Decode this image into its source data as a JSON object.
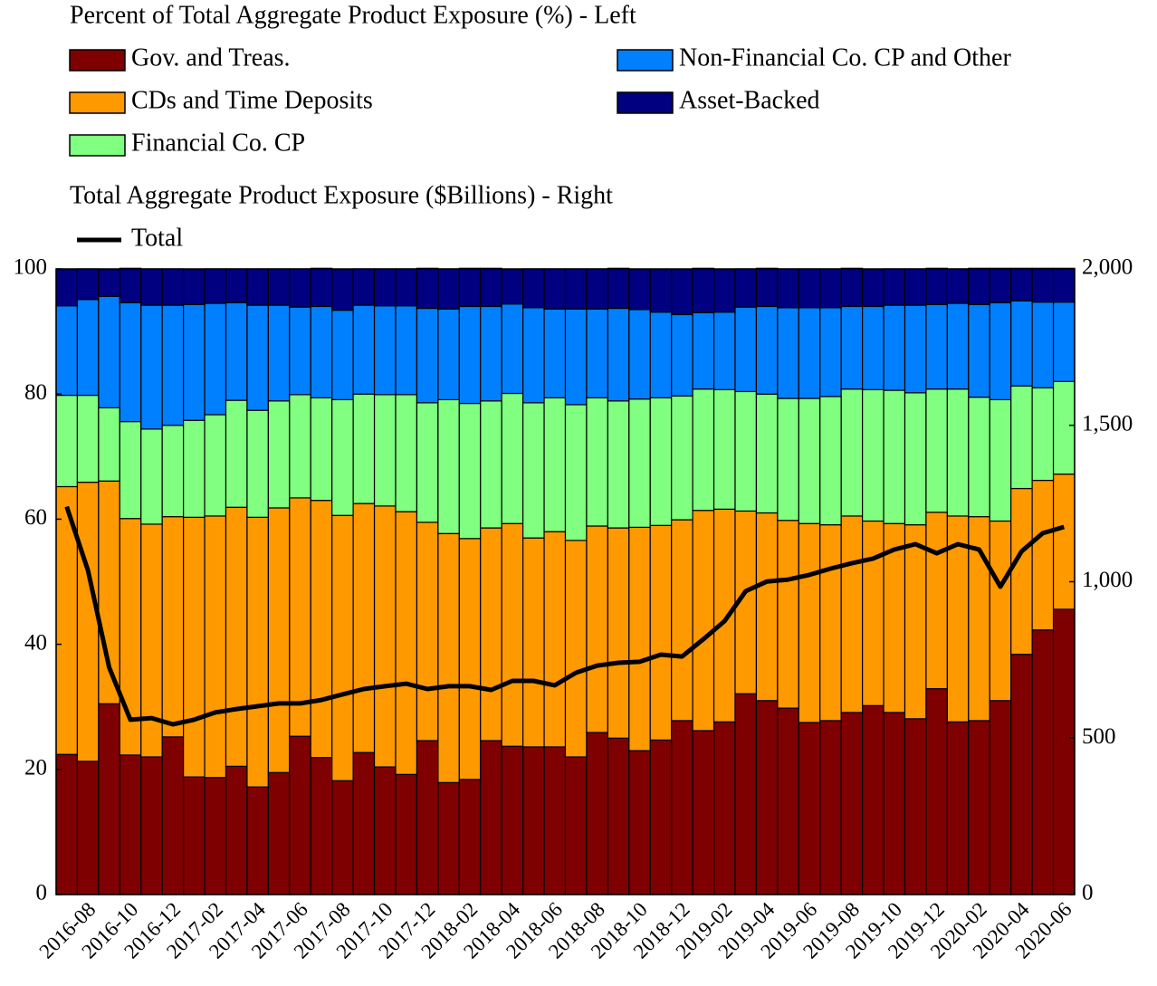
{
  "chart_data": {
    "type": "bar",
    "stacked": true,
    "left_legend_title": "Percent of Total Aggregate Product Exposure (%) - Left",
    "right_legend_title": "Total Aggregate Product Exposure ($Billions) - Right",
    "categories": [
      null,
      "2016-08",
      null,
      "2016-10",
      null,
      "2016-12",
      null,
      "2017-02",
      null,
      "2017-04",
      null,
      "2017-06",
      null,
      "2017-08",
      null,
      "2017-10",
      null,
      "2017-12",
      null,
      "2018-02",
      null,
      "2018-04",
      null,
      "2018-06",
      null,
      "2018-08",
      null,
      "2018-10",
      null,
      "2018-12",
      null,
      "2019-02",
      null,
      "2019-04",
      null,
      "2019-06",
      null,
      "2019-08",
      null,
      "2019-10",
      null,
      "2019-12",
      null,
      "2020-02",
      null,
      "2020-04",
      null,
      "2020-06"
    ],
    "series": [
      {
        "name": "Gov. and Treas.",
        "color": "#7f0000",
        "values": [
          22.4,
          21.3,
          30.5,
          22.3,
          22.0,
          25.2,
          18.8,
          18.7,
          20.5,
          17.2,
          19.5,
          25.3,
          21.9,
          18.2,
          22.7,
          20.4,
          19.2,
          24.6,
          17.9,
          18.4,
          24.6,
          23.7,
          23.6,
          23.6,
          22.0,
          25.9,
          25.0,
          23.0,
          24.7,
          27.8,
          26.2,
          27.6,
          32.1,
          31.0,
          29.8,
          27.5,
          27.8,
          29.1,
          30.2,
          29.1,
          28.1,
          32.9,
          27.6,
          27.8,
          31.0,
          38.4,
          42.3,
          45.6
        ]
      },
      {
        "name": "CDs and Time Deposits",
        "color": "#ff9900",
        "values": [
          42.8,
          44.6,
          35.6,
          37.8,
          37.2,
          35.2,
          41.5,
          41.8,
          41.4,
          43.1,
          42.3,
          38.1,
          41.1,
          42.4,
          39.8,
          41.7,
          42.0,
          34.9,
          39.8,
          38.5,
          34.0,
          35.6,
          33.4,
          34.4,
          34.6,
          33.0,
          33.6,
          35.7,
          34.3,
          32.1,
          35.2,
          34.0,
          29.2,
          30.0,
          30.0,
          31.8,
          31.3,
          31.4,
          29.5,
          30.2,
          31.0,
          28.2,
          32.9,
          32.6,
          28.7,
          26.5,
          23.9,
          21.6
        ]
      },
      {
        "name": "Financial Co. CP",
        "color": "#80ff80",
        "values": [
          14.6,
          13.9,
          11.7,
          15.5,
          15.2,
          14.6,
          15.5,
          16.2,
          17.1,
          17.1,
          17.1,
          16.5,
          16.4,
          18.5,
          17.5,
          17.8,
          18.7,
          19.1,
          21.4,
          21.6,
          20.3,
          20.8,
          21.6,
          21.4,
          21.7,
          20.5,
          20.3,
          20.5,
          20.4,
          19.8,
          19.4,
          19.1,
          19.1,
          19.0,
          19.5,
          20.0,
          20.5,
          20.3,
          21.0,
          21.3,
          21.1,
          19.7,
          20.3,
          19.1,
          19.4,
          16.4,
          14.8,
          14.8
        ]
      },
      {
        "name": "Non-Financial Co. CP and Other",
        "color": "#0080ff",
        "values": [
          14.3,
          15.3,
          17.8,
          19.0,
          19.8,
          19.2,
          18.5,
          17.8,
          15.6,
          16.8,
          15.3,
          14.0,
          14.6,
          14.3,
          14.2,
          14.2,
          14.2,
          15.1,
          14.5,
          15.5,
          15.1,
          14.3,
          15.2,
          14.2,
          15.3,
          14.2,
          14.8,
          14.3,
          13.7,
          13.0,
          12.2,
          12.4,
          13.5,
          14.0,
          14.5,
          14.5,
          14.2,
          13.2,
          13.3,
          13.6,
          14.0,
          13.5,
          13.7,
          14.8,
          15.5,
          13.6,
          13.7,
          12.7
        ]
      },
      {
        "name": "Asset-Backed",
        "color": "#000080",
        "values": [
          5.8,
          4.9,
          4.3,
          5.5,
          5.8,
          5.8,
          5.6,
          5.5,
          5.4,
          5.8,
          5.8,
          6.1,
          6.1,
          6.5,
          5.8,
          5.9,
          5.9,
          6.4,
          6.4,
          6.1,
          6.1,
          5.5,
          6.2,
          6.4,
          6.4,
          6.4,
          6.4,
          6.4,
          6.8,
          7.2,
          7.1,
          6.8,
          6.1,
          6.1,
          6.2,
          6.2,
          6.2,
          6.1,
          5.9,
          5.8,
          5.8,
          5.8,
          5.5,
          5.8,
          5.5,
          5.2,
          5.4,
          5.4
        ]
      },
      {
        "name": "Total",
        "color": "#000000",
        "type": "line",
        "axis": "y2",
        "values": [
          1240,
          1036,
          726,
          559,
          564,
          544,
          559,
          582,
          593,
          602,
          611,
          611,
          622,
          640,
          657,
          666,
          674,
          657,
          666,
          666,
          654,
          683,
          683,
          669,
          709,
          732,
          741,
          744,
          767,
          761,
          816,
          874,
          970,
          1001,
          1007,
          1022,
          1042,
          1059,
          1074,
          1103,
          1120,
          1091,
          1120,
          1103,
          984,
          1097,
          1155,
          1175
        ]
      }
    ],
    "ylim": [
      0,
      100
    ],
    "yticks": [
      0,
      20,
      40,
      60,
      80,
      100
    ],
    "y2lim": [
      0,
      2000
    ],
    "y2ticks": [
      0,
      500,
      {
        "value": 1000,
        "label": "1,000"
      },
      {
        "value": 1500,
        "label": "1,500"
      },
      {
        "value": 2000,
        "label": "2,000"
      }
    ],
    "grid": false
  }
}
